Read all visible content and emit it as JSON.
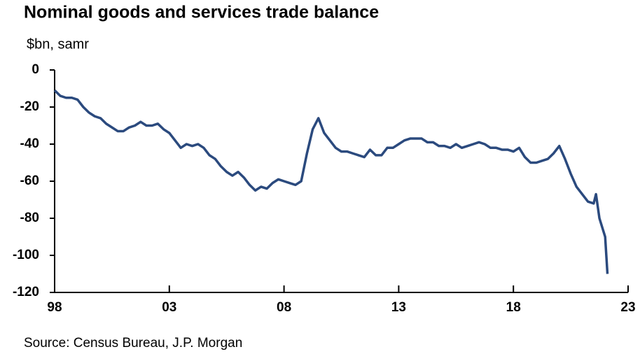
{
  "chart_data": {
    "type": "line",
    "title": "Nominal goods and services trade balance",
    "subtitle": "$bn, samr",
    "source": "Source: Census Bureau, J.P. Morgan",
    "xlim": [
      1998,
      2023
    ],
    "xticks": [
      {
        "value": 1998,
        "label": "98"
      },
      {
        "value": 2003,
        "label": "03"
      },
      {
        "value": 2008,
        "label": "08"
      },
      {
        "value": 2013,
        "label": "13"
      },
      {
        "value": 2018,
        "label": "18"
      },
      {
        "value": 2023,
        "label": "23"
      }
    ],
    "ylim": [
      -120,
      0
    ],
    "yticks": [
      0,
      -20,
      -40,
      -60,
      -80,
      -100,
      -120
    ],
    "grid": false,
    "series": [
      {
        "color": "#2b4a7e",
        "x": [
          1998,
          1998.25,
          1998.5,
          1998.75,
          1999,
          1999.25,
          1999.5,
          1999.75,
          2000,
          2000.25,
          2000.5,
          2000.75,
          2001,
          2001.25,
          2001.5,
          2001.75,
          2002,
          2002.25,
          2002.5,
          2002.75,
          2003,
          2003.25,
          2003.5,
          2003.75,
          2004,
          2004.25,
          2004.5,
          2004.75,
          2005,
          2005.25,
          2005.5,
          2005.75,
          2006,
          2006.25,
          2006.5,
          2006.75,
          2007,
          2007.25,
          2007.5,
          2007.75,
          2008,
          2008.25,
          2008.5,
          2008.75,
          2009,
          2009.25,
          2009.5,
          2009.75,
          2010,
          2010.25,
          2010.5,
          2010.75,
          2011,
          2011.25,
          2011.5,
          2011.75,
          2012,
          2012.25,
          2012.5,
          2012.75,
          2013,
          2013.25,
          2013.5,
          2013.75,
          2014,
          2014.25,
          2014.5,
          2014.75,
          2015,
          2015.25,
          2015.5,
          2015.75,
          2016,
          2016.25,
          2016.5,
          2016.75,
          2017,
          2017.25,
          2017.5,
          2017.75,
          2018,
          2018.25,
          2018.5,
          2018.75,
          2019,
          2019.25,
          2019.5,
          2019.75,
          2020,
          2020.25,
          2020.5,
          2020.75,
          2021,
          2021.25,
          2021.5,
          2021.6,
          2021.75,
          2022,
          2022.1
        ],
        "values": [
          -11,
          -14,
          -15,
          -15,
          -16,
          -20,
          -23,
          -25,
          -26,
          -29,
          -31,
          -33,
          -33,
          -31,
          -30,
          -28,
          -30,
          -30,
          -29,
          -32,
          -34,
          -38,
          -42,
          -40,
          -41,
          -40,
          -42,
          -46,
          -48,
          -52,
          -55,
          -57,
          -55,
          -58,
          -62,
          -65,
          -63,
          -64,
          -61,
          -59,
          -60,
          -61,
          -62,
          -60,
          -45,
          -32,
          -26,
          -34,
          -38,
          -42,
          -44,
          -44,
          -45,
          -46,
          -47,
          -43,
          -46,
          -46,
          -42,
          -42,
          -40,
          -38,
          -37,
          -37,
          -37,
          -39,
          -39,
          -41,
          -41,
          -42,
          -40,
          -42,
          -41,
          -40,
          -39,
          -40,
          -42,
          -42,
          -43,
          -43,
          -44,
          -42,
          -47,
          -50,
          -50,
          -49,
          -48,
          -45,
          -41,
          -48,
          -56,
          -63,
          -67,
          -71,
          -72,
          -67,
          -80,
          -90,
          -110
        ]
      }
    ]
  }
}
